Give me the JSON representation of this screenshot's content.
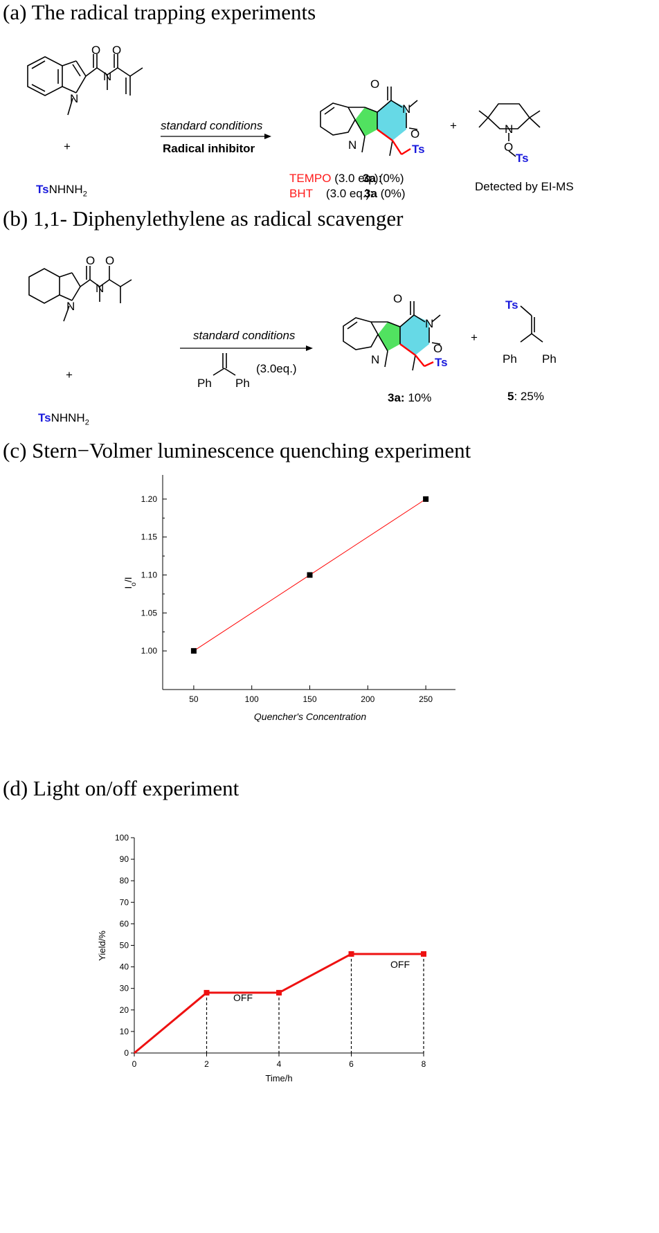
{
  "section_a": {
    "heading": "(a) The radical trapping experiments",
    "plus1": "+",
    "plus2": "+",
    "reagent_ts": "Ts",
    "reagent_rest": "NHNH",
    "reagent_sub": "2",
    "condition_top": "standard conditions",
    "condition_bottom": "Radical inhibitor",
    "row1_inhibitor": "TEMPO",
    "row1_eq": "(3.0 eq.):",
    "row1_product": "3a",
    "row1_yield": "(0%)",
    "row2_inhibitor": "BHT",
    "row2_eq": "(3.0 eq.):",
    "row2_product": "3a",
    "row2_yield": "(0%)",
    "detected": "Detected by EI-MS",
    "atoms": {
      "O": "O",
      "N": "N",
      "Ts": "Ts"
    }
  },
  "section_b": {
    "heading": "(b) 1,1- Diphenylethylene as radical scavenger",
    "plus1": "+",
    "plus2": "+",
    "reagent_ts": "Ts",
    "reagent_rest": "NHNH",
    "reagent_sub": "2",
    "condition_top": "standard conditions",
    "additive_eq": "(3.0eq.)",
    "ph": "Ph",
    "product_label": "3a:",
    "product_yield": "10%",
    "byproduct_label": "5",
    "byproduct_yield": ": 25%"
  },
  "section_c": {
    "heading": "(c) Stern−Volmer luminescence quenching experiment"
  },
  "section_d": {
    "heading": "(d) Light  on/off experiment"
  },
  "chart_data": [
    {
      "type": "line",
      "title": "",
      "xlabel": "Quencher's Concentration",
      "ylabel": "Io/I",
      "xlim": [
        25,
        275
      ],
      "ylim": [
        0.95,
        1.23
      ],
      "x_ticks": [
        50,
        100,
        150,
        200,
        250
      ],
      "y_ticks": [
        1.0,
        1.05,
        1.1,
        1.15,
        1.2
      ],
      "x_tick_labels": [
        "50",
        "100",
        "150",
        "200",
        "250"
      ],
      "y_tick_labels": [
        "1.00",
        "1.05",
        "1.10",
        "1.15",
        "1.20"
      ],
      "series": [
        {
          "x": [
            50,
            150,
            250
          ],
          "values": [
            1.0,
            1.1,
            1.2
          ],
          "color": "#ff0000",
          "marker_color": "#000000"
        }
      ],
      "grid": false
    },
    {
      "type": "line",
      "title": "",
      "xlabel": "Time/h",
      "ylabel": "Yield/%",
      "xlim": [
        0,
        8
      ],
      "ylim": [
        0,
        100
      ],
      "x_ticks": [
        0,
        2,
        4,
        6,
        8
      ],
      "y_ticks": [
        0,
        10,
        20,
        30,
        40,
        50,
        60,
        70,
        80,
        90,
        100
      ],
      "x_tick_labels": [
        "0",
        "2",
        "4",
        "6",
        "8"
      ],
      "y_tick_labels": [
        "0",
        "10",
        "20",
        "30",
        "40",
        "50",
        "60",
        "70",
        "80",
        "90",
        "100"
      ],
      "series": [
        {
          "x": [
            0,
            2,
            4,
            6,
            8
          ],
          "values": [
            0,
            28,
            28,
            46,
            46
          ],
          "color": "#ee1111"
        }
      ],
      "dashed_verticals_at": [
        2,
        4,
        6,
        8
      ],
      "annotations": [
        "OFF",
        "OFF"
      ],
      "grid": false
    }
  ]
}
